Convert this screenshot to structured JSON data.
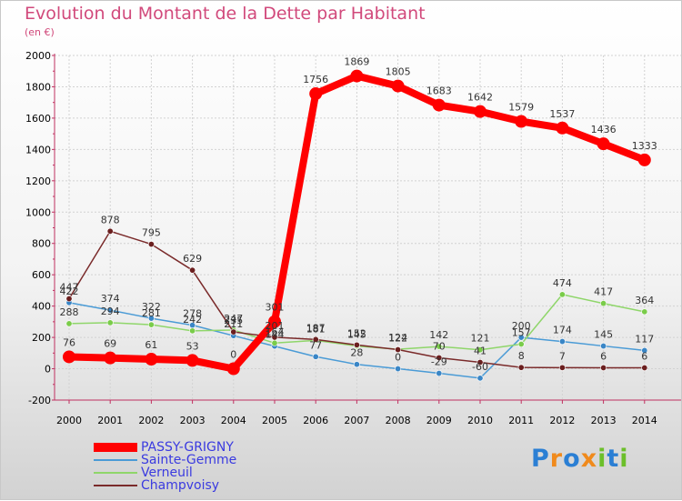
{
  "title": "Evolution du Montant de la Dette par Habitant",
  "unit": "(en €)",
  "brand": {
    "letters": [
      "P",
      "r",
      "o",
      "x",
      "i",
      "t",
      "i"
    ],
    "colors": [
      "#2b7fd4",
      "#f08a1c",
      "#2b7fd4",
      "#f08a1c",
      "#6cbf2a",
      "#2b7fd4",
      "#6cbf2a"
    ]
  },
  "chart_data": {
    "type": "line",
    "x": [
      "2000",
      "2001",
      "2002",
      "2003",
      "2004",
      "2005",
      "2006",
      "2007",
      "2008",
      "2009",
      "2010",
      "2011",
      "2012",
      "2013",
      "2014"
    ],
    "y_ticks": [
      "-200",
      "0",
      "200",
      "400",
      "600",
      "800",
      "1000",
      "1200",
      "1400",
      "1600",
      "1800",
      "2000"
    ],
    "ylim": [
      -200,
      2000
    ],
    "grid": "horizontal",
    "legend_position": "bottom-left",
    "series": [
      {
        "name": "PASSY-GRIGNY",
        "color": "#ff0000",
        "marker_color": "#ff0000",
        "emphasis": true,
        "values": [
          76,
          69,
          61,
          53,
          0,
          301,
          1756,
          1869,
          1805,
          1683,
          1642,
          1579,
          1537,
          1436,
          1333
        ],
        "labels": [
          "76",
          "69",
          "61",
          "53",
          "0",
          "301",
          "1756",
          "1869",
          "1805",
          "1683",
          "1642",
          "1579",
          "1537",
          "1436",
          "1333"
        ]
      },
      {
        "name": "Sainte-Gemme",
        "color": "#4a9bd6",
        "marker_color": "#3a86c6",
        "values": [
          422,
          374,
          322,
          278,
          211,
          144,
          77,
          28,
          0,
          -29,
          -60,
          200,
          174,
          145,
          117
        ],
        "labels": [
          "422",
          "374",
          "322",
          "278",
          "211",
          "144",
          "77",
          "28",
          "0",
          "-29",
          "-60",
          "200",
          "174",
          "145",
          "117"
        ]
      },
      {
        "name": "Verneuil",
        "color": "#8fd66a",
        "marker_color": "#7acc4a",
        "values": [
          288,
          294,
          281,
          242,
          247,
          164,
          181,
          145,
          124,
          142,
          121,
          157,
          474,
          417,
          364
        ],
        "labels": [
          "288",
          "294",
          "281",
          "242",
          "247",
          "164",
          "181",
          "145",
          "124",
          "142",
          "121",
          "157",
          "474",
          "417",
          "364"
        ]
      },
      {
        "name": "Champvoisy",
        "color": "#7a2a2a",
        "marker_color": "#6b1f1f",
        "values": [
          447,
          878,
          795,
          629,
          235,
          201,
          187,
          152,
          122,
          70,
          41,
          8,
          7,
          6,
          6
        ],
        "labels": [
          "447",
          "878",
          "795",
          "629",
          "235",
          "201",
          "187",
          "152",
          "122",
          "70",
          "41",
          "8",
          "7",
          "6",
          "6"
        ]
      }
    ]
  }
}
